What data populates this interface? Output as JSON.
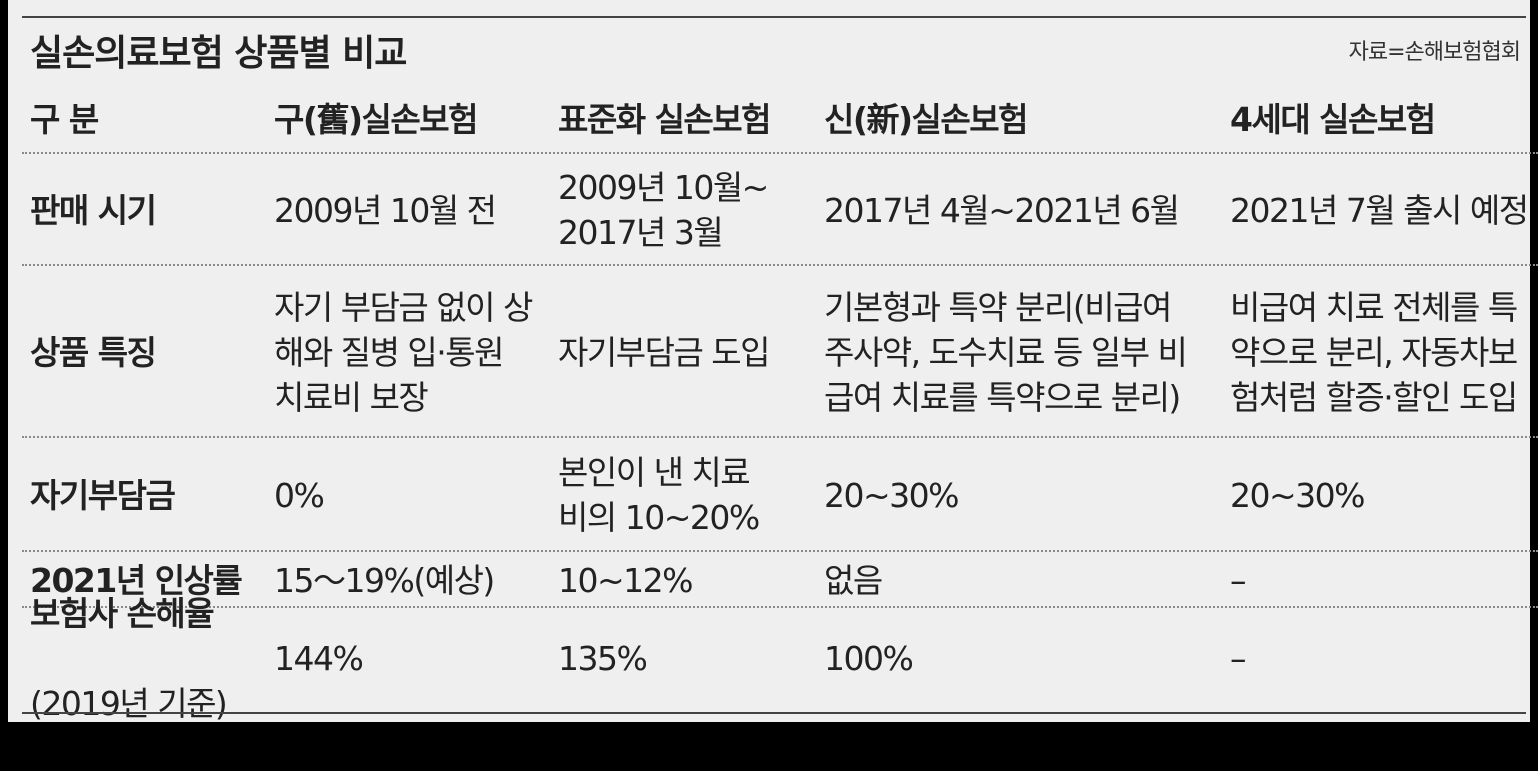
{
  "title": "실손의료보험 상품별 비교",
  "source": "자료=손해보험협회",
  "headers": [
    "구 분",
    "구(舊)실손보험",
    "표준화 실손보험",
    "신(新)실손보험",
    "4세대 실손보험"
  ],
  "rows": [
    {
      "label": "판매 시기",
      "cells": [
        "2009년 10월 전",
        "2009년 10월~\n2017년 3월",
        "2017년 4월~2021년 6월",
        "2021년 7월 출시 예정"
      ]
    },
    {
      "label": "상품 특징",
      "cells": [
        "자기 부담금 없이 상\n해와 질병 입·통원\n치료비 보장",
        "자기부담금 도입",
        "기본형과 특약 분리(비급여\n주사약, 도수치료 등 일부 비\n급여 치료를 특약으로 분리)",
        "비급여 치료 전체를 특\n약으로 분리, 자동차보\n험처럼 할증·할인 도입"
      ]
    },
    {
      "label": "자기부담금",
      "cells": [
        "0%",
        "본인이 낸 치료\n비의 10~20%",
        "20~30%",
        "20~30%"
      ]
    },
    {
      "label": "2021년 인상률",
      "cells": [
        "15～19%(예상)",
        "10~12%",
        "없음",
        "–"
      ]
    },
    {
      "label": "보험사 손해율",
      "label_sub": "(2019년 기준)",
      "cells": [
        "144%",
        "135%",
        "100%",
        "–"
      ]
    }
  ]
}
